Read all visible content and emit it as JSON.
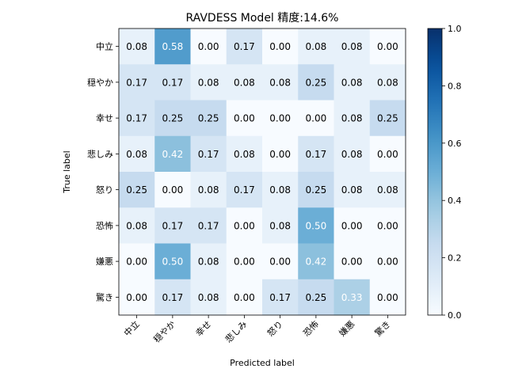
{
  "chart_data": {
    "type": "heatmap",
    "title": "RAVDESS Model 精度:14.6%",
    "xlabel": "Predicted label",
    "ylabel": "True label",
    "x_categories": [
      "中立",
      "穏やか",
      "幸せ",
      "悲しみ",
      "怒り",
      "恐怖",
      "嫌悪",
      "驚き"
    ],
    "y_categories": [
      "中立",
      "穏やか",
      "幸せ",
      "悲しみ",
      "怒り",
      "恐怖",
      "嫌悪",
      "驚き"
    ],
    "values": [
      [
        0.08,
        0.58,
        0.0,
        0.17,
        0.0,
        0.08,
        0.08,
        0.0
      ],
      [
        0.17,
        0.17,
        0.08,
        0.08,
        0.08,
        0.25,
        0.08,
        0.08
      ],
      [
        0.17,
        0.25,
        0.25,
        0.0,
        0.0,
        0.0,
        0.08,
        0.25
      ],
      [
        0.08,
        0.42,
        0.17,
        0.08,
        0.0,
        0.17,
        0.08,
        0.0
      ],
      [
        0.25,
        0.0,
        0.08,
        0.17,
        0.08,
        0.25,
        0.08,
        0.08
      ],
      [
        0.08,
        0.17,
        0.17,
        0.0,
        0.08,
        0.5,
        0.0,
        0.0
      ],
      [
        0.0,
        0.5,
        0.08,
        0.0,
        0.0,
        0.42,
        0.0,
        0.0
      ],
      [
        0.0,
        0.17,
        0.08,
        0.0,
        0.17,
        0.25,
        0.33,
        0.0
      ]
    ],
    "value_range": [
      0.0,
      1.0
    ],
    "colormap": "Blues",
    "colorbar": {
      "range": [
        0.0,
        1.0
      ],
      "ticks": [
        "0.0",
        "0.2",
        "0.4",
        "0.6",
        "0.8",
        "1.0"
      ]
    }
  }
}
